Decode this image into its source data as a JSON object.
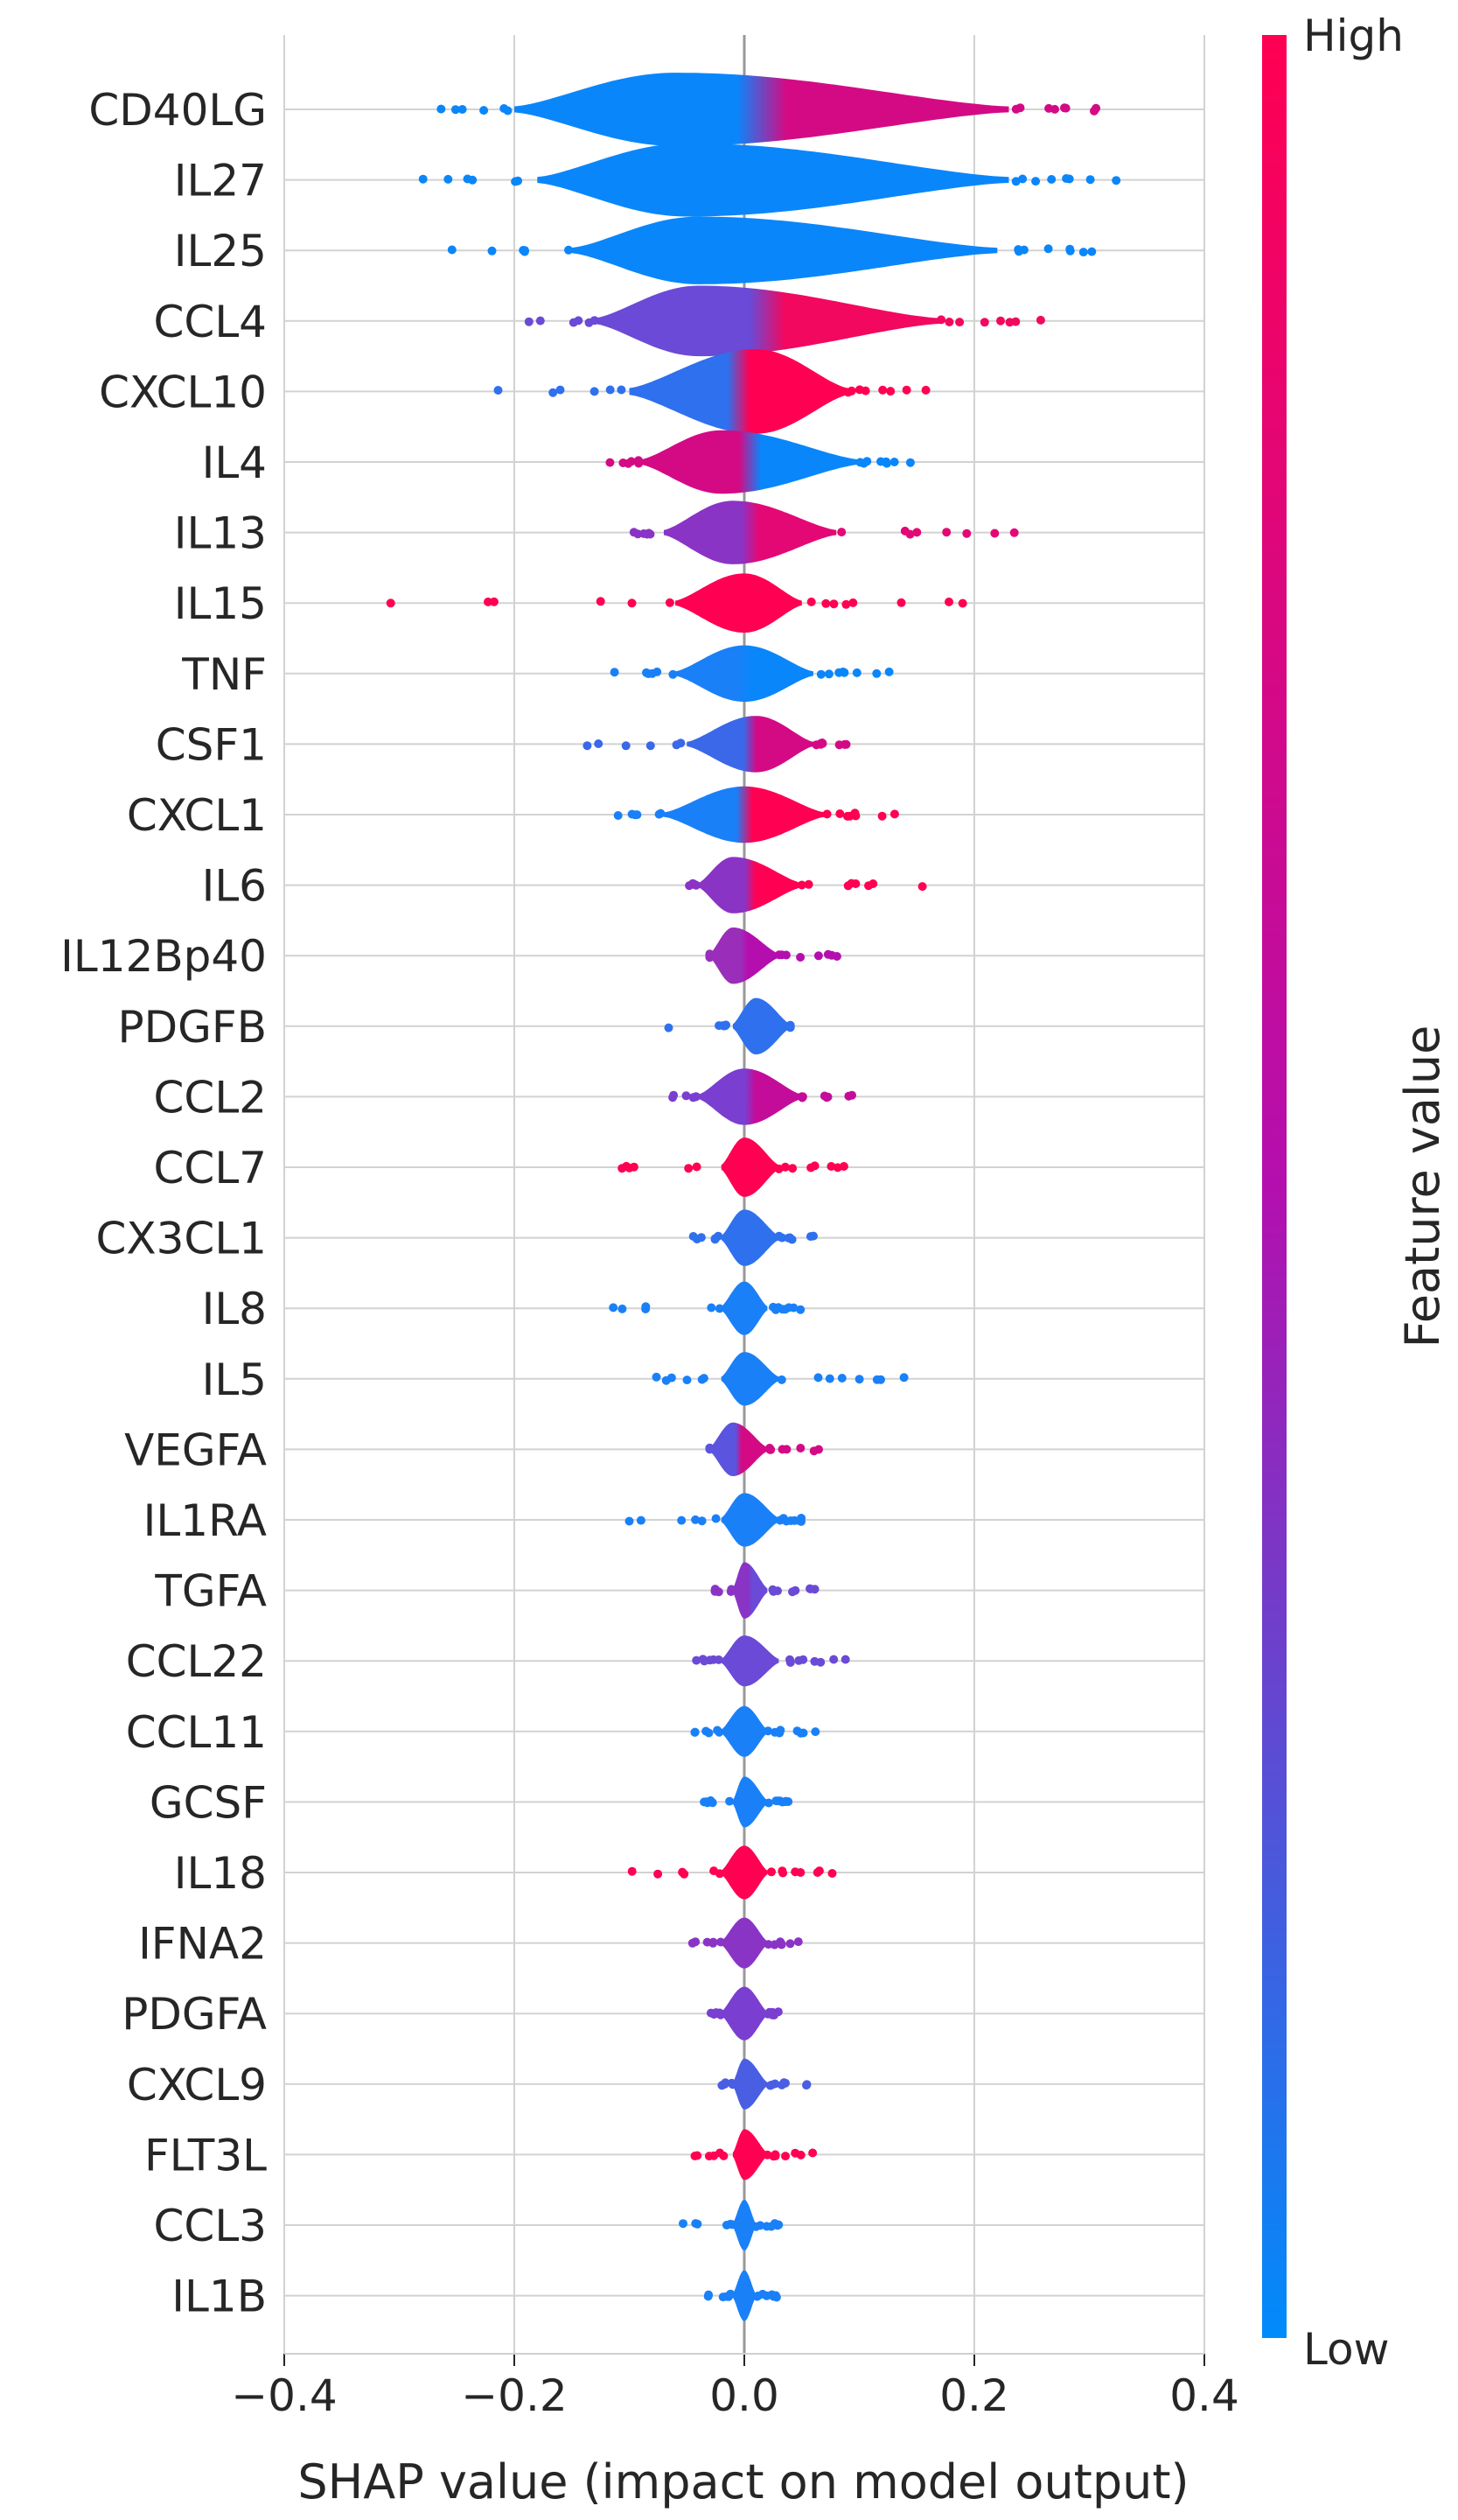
{
  "chart_data": {
    "type": "violin",
    "title": "",
    "xlabel": "SHAP value (impact on model output)",
    "xlim": [
      -0.4,
      0.4
    ],
    "xticks": [
      -0.4,
      -0.2,
      0.0,
      0.2,
      0.4
    ],
    "xtick_labels": [
      "−0.4",
      "−0.2",
      "0.0",
      "0.2",
      "0.4"
    ],
    "grid": true,
    "colorbar": {
      "title": "Feature value",
      "high_label": "High",
      "low_label": "Low",
      "high_color": "#ff0052",
      "mid_color": "#b40fae",
      "low_color": "#008bfb"
    },
    "features": [
      {
        "name": "CD40LG",
        "min": -0.32,
        "max": 0.31,
        "core": [
          -0.2,
          0.23
        ],
        "width": 0.52,
        "peak": -0.06,
        "color_left": "#0a86fb",
        "color_right": "#d40a85"
      },
      {
        "name": "IL27",
        "min": -0.34,
        "max": 0.36,
        "core": [
          -0.18,
          0.23
        ],
        "width": 0.52,
        "peak": -0.05,
        "color_left": "#0a86fb",
        "color_right": "#0a86fb"
      },
      {
        "name": "IL25",
        "min": -0.26,
        "max": 0.31,
        "core": [
          -0.15,
          0.22
        ],
        "width": 0.48,
        "peak": -0.04,
        "color_left": "#0a86fb",
        "color_right": "#0a86fb"
      },
      {
        "name": "CCL4",
        "min": -0.22,
        "max": 0.27,
        "core": [
          -0.13,
          0.17
        ],
        "width": 0.5,
        "peak": -0.04,
        "color_left": "#6a4ad6",
        "color_right": "#f2085f"
      },
      {
        "name": "CXCL10",
        "min": -0.24,
        "max": 0.18,
        "core": [
          -0.1,
          0.09
        ],
        "width": 0.6,
        "peak": 0.01,
        "color_left": "#2f70ee",
        "color_right": "#ff0052"
      },
      {
        "name": "IL4",
        "min": -0.13,
        "max": 0.15,
        "core": [
          -0.09,
          0.1
        ],
        "width": 0.45,
        "peak": -0.02,
        "color_left": "#d40a85",
        "color_right": "#0a86fb"
      },
      {
        "name": "IL13",
        "min": -0.1,
        "max": 0.24,
        "core": [
          -0.07,
          0.08
        ],
        "width": 0.45,
        "peak": -0.01,
        "color_left": "#8a34c6",
        "color_right": "#e40875"
      },
      {
        "name": "IL15",
        "min": -0.32,
        "max": 0.21,
        "core": [
          -0.06,
          0.05
        ],
        "width": 0.42,
        "peak": 0.0,
        "color_left": "#ff0052",
        "color_right": "#ff0052"
      },
      {
        "name": "TNF",
        "min": -0.12,
        "max": 0.14,
        "core": [
          -0.06,
          0.06
        ],
        "width": 0.4,
        "peak": 0.0,
        "color_left": "#1a80f8",
        "color_right": "#0a86fb"
      },
      {
        "name": "CSF1",
        "min": -0.15,
        "max": 0.09,
        "core": [
          -0.05,
          0.06
        ],
        "width": 0.4,
        "peak": 0.01,
        "color_left": "#3a68e8",
        "color_right": "#d40a85"
      },
      {
        "name": "CXCL1",
        "min": -0.12,
        "max": 0.14,
        "core": [
          -0.07,
          0.07
        ],
        "width": 0.4,
        "peak": 0.0,
        "color_left": "#1a80f8",
        "color_right": "#ff0052"
      },
      {
        "name": "IL6",
        "min": -0.05,
        "max": 0.16,
        "core": [
          -0.04,
          0.05
        ],
        "width": 0.4,
        "peak": -0.01,
        "color_left": "#8a34c6",
        "color_right": "#ff0052"
      },
      {
        "name": "IL12Bp40",
        "min": -0.03,
        "max": 0.11,
        "core": [
          -0.03,
          0.03
        ],
        "width": 0.4,
        "peak": -0.01,
        "color_left": "#9a2eba",
        "color_right": "#b40fae"
      },
      {
        "name": "PDGFB",
        "min": -0.13,
        "max": 0.04,
        "core": [
          -0.01,
          0.04
        ],
        "width": 0.4,
        "peak": 0.01,
        "color_left": "#2f70ee",
        "color_right": "#2f70ee"
      },
      {
        "name": "CCL2",
        "min": -0.07,
        "max": 0.11,
        "core": [
          -0.04,
          0.05
        ],
        "width": 0.4,
        "peak": 0.0,
        "color_left": "#7a3ed0",
        "color_right": "#c40c9a"
      },
      {
        "name": "CCL7",
        "min": -0.11,
        "max": 0.13,
        "core": [
          -0.02,
          0.03
        ],
        "width": 0.42,
        "peak": 0.0,
        "color_left": "#ff0052",
        "color_right": "#ff0052"
      },
      {
        "name": "CX3CL1",
        "min": -0.05,
        "max": 0.08,
        "core": [
          -0.02,
          0.03
        ],
        "width": 0.4,
        "peak": 0.0,
        "color_left": "#2f70ee",
        "color_right": "#2f70ee"
      },
      {
        "name": "IL8",
        "min": -0.12,
        "max": 0.05,
        "core": [
          -0.02,
          0.02
        ],
        "width": 0.38,
        "peak": 0.0,
        "color_left": "#1a80f8",
        "color_right": "#1a80f8"
      },
      {
        "name": "IL5",
        "min": -0.08,
        "max": 0.14,
        "core": [
          -0.02,
          0.03
        ],
        "width": 0.38,
        "peak": 0.0,
        "color_left": "#1a80f8",
        "color_right": "#1a80f8"
      },
      {
        "name": "VEGFA",
        "min": -0.03,
        "max": 0.07,
        "core": [
          -0.03,
          0.02
        ],
        "width": 0.38,
        "peak": -0.01,
        "color_left": "#5a54de",
        "color_right": "#d40a85"
      },
      {
        "name": "IL1RA",
        "min": -0.14,
        "max": 0.05,
        "core": [
          -0.02,
          0.03
        ],
        "width": 0.38,
        "peak": 0.0,
        "color_left": "#1a80f8",
        "color_right": "#1a80f8"
      },
      {
        "name": "TGFA",
        "min": -0.03,
        "max": 0.08,
        "core": [
          -0.01,
          0.02
        ],
        "width": 0.4,
        "peak": 0.0,
        "color_left": "#8a34c6",
        "color_right": "#6a4ad6"
      },
      {
        "name": "CCL22",
        "min": -0.05,
        "max": 0.09,
        "core": [
          -0.02,
          0.03
        ],
        "width": 0.36,
        "peak": 0.0,
        "color_left": "#6a4ad6",
        "color_right": "#6a4ad6"
      },
      {
        "name": "CCL11",
        "min": -0.05,
        "max": 0.07,
        "core": [
          -0.02,
          0.02
        ],
        "width": 0.36,
        "peak": 0.0,
        "color_left": "#1a80f8",
        "color_right": "#1a80f8"
      },
      {
        "name": "GCSF",
        "min": -0.04,
        "max": 0.04,
        "core": [
          -0.01,
          0.02
        ],
        "width": 0.36,
        "peak": 0.0,
        "color_left": "#1a80f8",
        "color_right": "#1a80f8"
      },
      {
        "name": "IL18",
        "min": -0.1,
        "max": 0.08,
        "core": [
          -0.02,
          0.02
        ],
        "width": 0.38,
        "peak": 0.0,
        "color_left": "#ff0052",
        "color_right": "#ff0052"
      },
      {
        "name": "IFNA2",
        "min": -0.06,
        "max": 0.05,
        "core": [
          -0.02,
          0.02
        ],
        "width": 0.36,
        "peak": 0.0,
        "color_left": "#8a34c6",
        "color_right": "#8a34c6"
      },
      {
        "name": "PDGFA",
        "min": -0.03,
        "max": 0.03,
        "core": [
          -0.02,
          0.02
        ],
        "width": 0.38,
        "peak": 0.0,
        "color_left": "#7a3ed0",
        "color_right": "#7a3ed0"
      },
      {
        "name": "CXCL9",
        "min": -0.02,
        "max": 0.06,
        "core": [
          -0.01,
          0.02
        ],
        "width": 0.36,
        "peak": 0.0,
        "color_left": "#4a5ee4",
        "color_right": "#4a5ee4"
      },
      {
        "name": "FLT3L",
        "min": -0.05,
        "max": 0.06,
        "core": [
          -0.01,
          0.02
        ],
        "width": 0.36,
        "peak": 0.0,
        "color_left": "#ff0052",
        "color_right": "#ff0052"
      },
      {
        "name": "CCL3",
        "min": -0.06,
        "max": 0.03,
        "core": [
          -0.01,
          0.01
        ],
        "width": 0.36,
        "peak": 0.0,
        "color_left": "#1a80f8",
        "color_right": "#1a80f8"
      },
      {
        "name": "IL1B",
        "min": -0.04,
        "max": 0.03,
        "core": [
          -0.01,
          0.01
        ],
        "width": 0.36,
        "peak": 0.0,
        "color_left": "#1a80f8",
        "color_right": "#1a80f8"
      }
    ]
  }
}
